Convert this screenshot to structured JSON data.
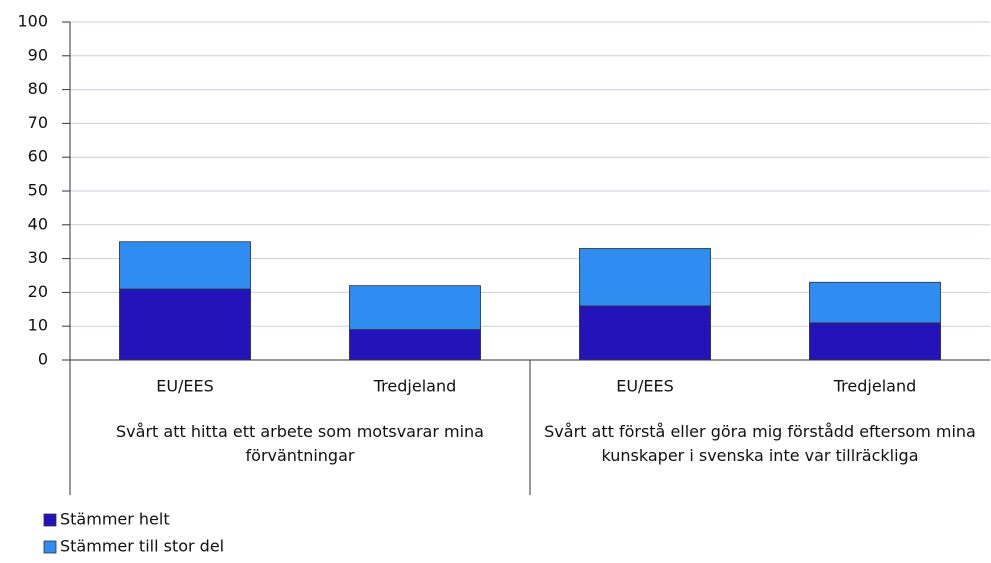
{
  "chart_data": {
    "type": "bar",
    "stacked": true,
    "categories": [
      "EU/EES",
      "Tredjeland",
      "EU/EES",
      "Tredjeland"
    ],
    "groups": [
      "Svårt att hitta ett arbete som motsvarar mina förväntningar",
      "Svårt att förstå eller göra mig förstådd eftersom mina kunskaper i svenska inte var tillräckliga"
    ],
    "series": [
      {
        "name": "Stämmer helt",
        "color": "#2313b8",
        "values": [
          21,
          9,
          16,
          11
        ]
      },
      {
        "name": "Stämmer till stor del",
        "color": "#2f8df2",
        "values": [
          14,
          13,
          17,
          12
        ]
      }
    ],
    "ylim": [
      0,
      100
    ],
    "yticks": [
      0,
      10,
      20,
      30,
      40,
      50,
      60,
      70,
      80,
      90,
      100
    ],
    "grid": true
  }
}
